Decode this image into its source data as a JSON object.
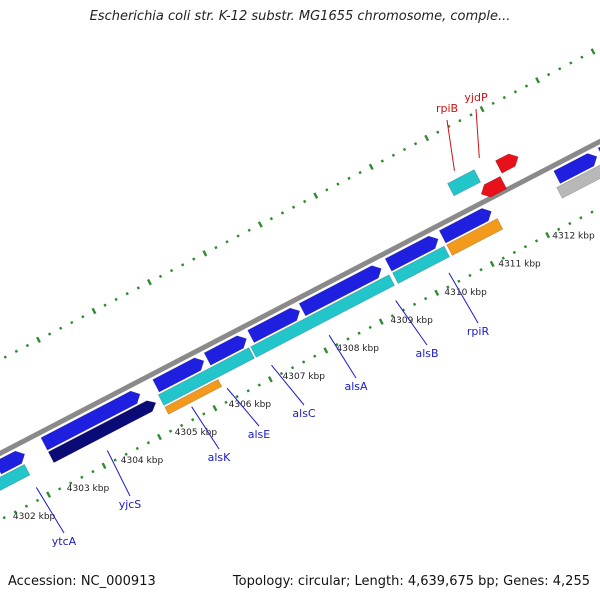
{
  "title": "Escherichia coli str. K-12 substr. MG1655 chromosome, comple...",
  "footer": {
    "accession": "Accession: NC_000913",
    "summary": "Topology: circular; Length: 4,639,675 bp; Genes: 4,255"
  },
  "colors": {
    "backbone": "#8a8a8a",
    "tick": "#2e8b2e",
    "forward_gene": "#1f1fe0",
    "reverse_gene": "#0b0b78",
    "cds": "#22c5c9",
    "orange_feature": "#f39a1c",
    "red_feature": "#e8101a",
    "gray_feature": "#b8b8b8",
    "label_blue": "#1a1acc",
    "label_red": "#cc1111"
  },
  "scale_labels": [
    "4302 kbp",
    "4303 kbp",
    "4304 kbp",
    "4305 kbp",
    "4306 kbp",
    "4307 kbp",
    "4308 kbp",
    "4309 kbp",
    "4310 kbp",
    "4311 kbp",
    "4312 kbp"
  ],
  "gene_labels": [
    {
      "text": "ytcA",
      "color": "blue"
    },
    {
      "text": "yjcS",
      "color": "blue"
    },
    {
      "text": "alsK",
      "color": "blue"
    },
    {
      "text": "alsE",
      "color": "blue"
    },
    {
      "text": "alsC",
      "color": "blue"
    },
    {
      "text": "alsA",
      "color": "blue"
    },
    {
      "text": "alsB",
      "color": "blue"
    },
    {
      "text": "rpiR",
      "color": "blue"
    },
    {
      "text": "rpiB",
      "color": "red"
    },
    {
      "text": "yjdP",
      "color": "red"
    }
  ]
}
